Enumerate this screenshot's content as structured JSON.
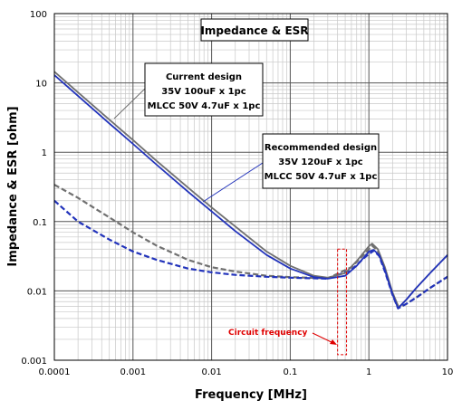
{
  "chart_data": {
    "type": "line",
    "title": "Impedance & ESR",
    "xlabel": "Frequency [MHz]",
    "ylabel": "Impedance & ESR [ohm]",
    "x_scale": "log",
    "y_scale": "log",
    "xlim": [
      0.0001,
      10
    ],
    "ylim": [
      0.001,
      100
    ],
    "x_ticks": [
      "0.0001",
      "0.001",
      "0.01",
      "0.1",
      "1",
      "10"
    ],
    "y_ticks": [
      "100",
      "10",
      "1",
      "0.1",
      "0.01",
      "0.001"
    ],
    "grid": true,
    "series": [
      {
        "name": "Current design impedance",
        "color": "#707070",
        "style": "solid",
        "points": [
          [
            0.0001,
            14.5
          ],
          [
            0.0002,
            7.3
          ],
          [
            0.0005,
            2.95
          ],
          [
            0.001,
            1.5
          ],
          [
            0.002,
            0.75
          ],
          [
            0.005,
            0.31
          ],
          [
            0.01,
            0.16
          ],
          [
            0.02,
            0.085
          ],
          [
            0.05,
            0.037
          ],
          [
            0.1,
            0.023
          ],
          [
            0.2,
            0.0165
          ],
          [
            0.3,
            0.0155
          ],
          [
            0.5,
            0.018
          ],
          [
            0.7,
            0.027
          ],
          [
            1.0,
            0.044
          ],
          [
            1.1,
            0.048
          ],
          [
            1.3,
            0.04
          ],
          [
            1.6,
            0.022
          ],
          [
            2.0,
            0.0095
          ],
          [
            2.4,
            0.0058
          ],
          [
            3.0,
            0.0075
          ],
          [
            4.0,
            0.011
          ],
          [
            6.0,
            0.018
          ],
          [
            10.0,
            0.033
          ]
        ]
      },
      {
        "name": "Current design ESR",
        "color": "#707070",
        "style": "dashed",
        "points": [
          [
            0.0001,
            0.34
          ],
          [
            0.0002,
            0.22
          ],
          [
            0.0005,
            0.115
          ],
          [
            0.001,
            0.07
          ],
          [
            0.002,
            0.045
          ],
          [
            0.005,
            0.028
          ],
          [
            0.01,
            0.022
          ],
          [
            0.02,
            0.019
          ],
          [
            0.05,
            0.0165
          ],
          [
            0.1,
            0.0158
          ],
          [
            0.3,
            0.0152
          ],
          [
            0.6,
            0.022
          ],
          [
            0.9,
            0.035
          ],
          [
            1.1,
            0.045
          ],
          [
            1.3,
            0.038
          ],
          [
            1.6,
            0.02
          ],
          [
            2.0,
            0.009
          ],
          [
            2.4,
            0.0057
          ],
          [
            3.0,
            0.0065
          ],
          [
            4.0,
            0.008
          ],
          [
            6.0,
            0.011
          ],
          [
            10.0,
            0.016
          ]
        ]
      },
      {
        "name": "Recommended design impedance",
        "color": "#2233bb",
        "style": "solid",
        "points": [
          [
            0.0001,
            13.0
          ],
          [
            0.0002,
            6.5
          ],
          [
            0.0005,
            2.6
          ],
          [
            0.001,
            1.32
          ],
          [
            0.002,
            0.66
          ],
          [
            0.005,
            0.27
          ],
          [
            0.01,
            0.14
          ],
          [
            0.02,
            0.073
          ],
          [
            0.05,
            0.033
          ],
          [
            0.1,
            0.021
          ],
          [
            0.2,
            0.0158
          ],
          [
            0.3,
            0.015
          ],
          [
            0.5,
            0.0165
          ],
          [
            0.7,
            0.023
          ],
          [
            1.0,
            0.037
          ],
          [
            1.15,
            0.039
          ],
          [
            1.35,
            0.033
          ],
          [
            1.6,
            0.02
          ],
          [
            2.0,
            0.009
          ],
          [
            2.35,
            0.0056
          ],
          [
            3.0,
            0.0075
          ],
          [
            4.0,
            0.011
          ],
          [
            6.0,
            0.018
          ],
          [
            10.0,
            0.033
          ]
        ]
      },
      {
        "name": "Recommended design ESR",
        "color": "#2233bb",
        "style": "dashed",
        "points": [
          [
            0.0001,
            0.2
          ],
          [
            0.0002,
            0.1
          ],
          [
            0.0005,
            0.055
          ],
          [
            0.001,
            0.037
          ],
          [
            0.002,
            0.028
          ],
          [
            0.005,
            0.021
          ],
          [
            0.01,
            0.0185
          ],
          [
            0.02,
            0.017
          ],
          [
            0.05,
            0.016
          ],
          [
            0.1,
            0.0155
          ],
          [
            0.3,
            0.015
          ],
          [
            0.6,
            0.02
          ],
          [
            0.9,
            0.031
          ],
          [
            1.15,
            0.038
          ],
          [
            1.35,
            0.032
          ],
          [
            1.6,
            0.019
          ],
          [
            2.0,
            0.0088
          ],
          [
            2.35,
            0.0056
          ],
          [
            3.0,
            0.0065
          ],
          [
            4.0,
            0.008
          ],
          [
            6.0,
            0.011
          ],
          [
            10.0,
            0.016
          ]
        ]
      }
    ],
    "annotations": {
      "current": {
        "lines": [
          "Current design",
          "35V 100uF x 1pc",
          "MLCC 50V 4.7uF x 1pc"
        ],
        "pointer": [
          0.0006,
          2.6
        ]
      },
      "recommended": {
        "lines": [
          "Recommended design",
          "35V 120uF x 1pc",
          "MLCC 50V 4.7uF x 1pc"
        ],
        "pointer": [
          0.007,
          0.2
        ]
      },
      "circuit": {
        "label": "Circuit frequency",
        "x_range": [
          0.4,
          0.52
        ],
        "y_range": [
          0.0012,
          0.04
        ]
      }
    }
  }
}
